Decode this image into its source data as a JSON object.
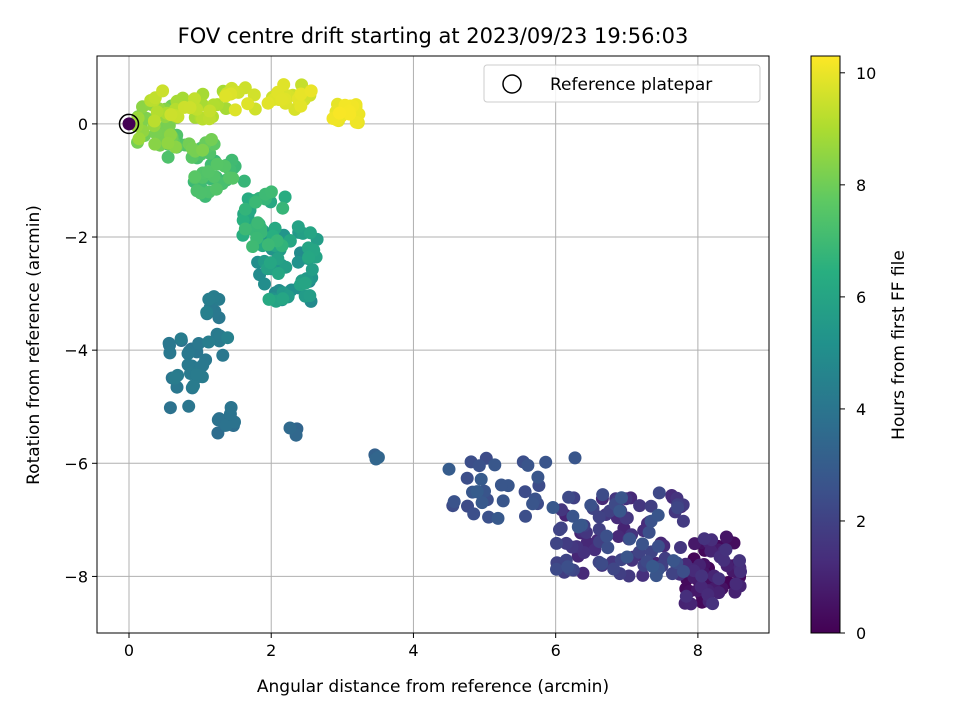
{
  "chart_data": {
    "type": "scatter",
    "title": "FOV centre drift starting at 2023/09/23 19:56:03",
    "xlabel": "Angular distance from reference (arcmin)",
    "ylabel": "Rotation from reference (arcmin)",
    "xlim": [
      -0.45,
      9.0
    ],
    "ylim": [
      -9.0,
      1.2
    ],
    "x_ticks": [
      0,
      2,
      4,
      6,
      8
    ],
    "y_ticks": [
      0,
      -2,
      -4,
      -6,
      -8
    ],
    "grid": true,
    "colormap": "viridis",
    "colorbar": {
      "label": "Hours from first FF file",
      "range": [
        0,
        10.3
      ],
      "ticks": [
        0,
        2,
        4,
        6,
        8,
        10
      ]
    },
    "legend": {
      "position": "top-right",
      "entries": [
        "Reference platepar"
      ]
    },
    "reference_point": {
      "x": 0,
      "y": 0
    },
    "clusters": [
      {
        "hours": [
          0.0,
          1.5
        ],
        "x": [
          7.8,
          8.6
        ],
        "y": [
          -8.5,
          -7.3
        ],
        "n": 70,
        "color_note": "earliest"
      },
      {
        "hours": [
          1.0,
          2.8
        ],
        "x": [
          6.0,
          7.8
        ],
        "y": [
          -8.0,
          -6.5
        ],
        "n": 110
      },
      {
        "hours": [
          2.3,
          3.0
        ],
        "x": [
          4.4,
          6.3
        ],
        "y": [
          -7.0,
          -5.9
        ],
        "n": 35
      },
      {
        "hours": [
          3.0,
          3.4
        ],
        "x": [
          3.45,
          3.55
        ],
        "y": [
          -5.95,
          -5.8
        ],
        "n": 3
      },
      {
        "hours": [
          3.3,
          3.6
        ],
        "x": [
          2.25,
          2.42
        ],
        "y": [
          -5.55,
          -5.32
        ],
        "n": 3
      },
      {
        "hours": [
          3.5,
          4.0
        ],
        "x": [
          1.25,
          1.5
        ],
        "y": [
          -5.5,
          -5.0
        ],
        "n": 10
      },
      {
        "hours": [
          3.8,
          4.3
        ],
        "x": [
          0.55,
          1.05
        ],
        "y": [
          -5.1,
          -3.8
        ],
        "n": 25
      },
      {
        "hours": [
          4.0,
          4.5
        ],
        "x": [
          1.05,
          1.45
        ],
        "y": [
          -4.2,
          -3.05
        ],
        "n": 15
      },
      {
        "hours": [
          4.8,
          6.2
        ],
        "x": [
          1.8,
          2.65
        ],
        "y": [
          -3.15,
          -1.8
        ],
        "n": 60
      },
      {
        "hours": [
          6.0,
          7.0
        ],
        "x": [
          1.6,
          2.2
        ],
        "y": [
          -2.2,
          -1.0
        ],
        "n": 35
      },
      {
        "hours": [
          6.8,
          7.6
        ],
        "x": [
          0.9,
          1.6
        ],
        "y": [
          -1.35,
          -0.6
        ],
        "n": 30
      },
      {
        "hours": [
          7.3,
          8.3
        ],
        "x": [
          0.4,
          1.2
        ],
        "y": [
          -0.6,
          -0.2
        ],
        "n": 25
      },
      {
        "hours": [
          8.0,
          8.8
        ],
        "x": [
          0.1,
          0.7
        ],
        "y": [
          -0.45,
          0.4
        ],
        "n": 30
      },
      {
        "hours": [
          8.8,
          9.6
        ],
        "x": [
          0.2,
          1.4
        ],
        "y": [
          0.05,
          0.6
        ],
        "n": 30
      },
      {
        "hours": [
          9.4,
          10.0
        ],
        "x": [
          1.2,
          2.6
        ],
        "y": [
          0.15,
          0.7
        ],
        "n": 30
      },
      {
        "hours": [
          9.9,
          10.3
        ],
        "x": [
          2.85,
          3.25
        ],
        "y": [
          0.0,
          0.35
        ],
        "n": 18
      }
    ]
  }
}
